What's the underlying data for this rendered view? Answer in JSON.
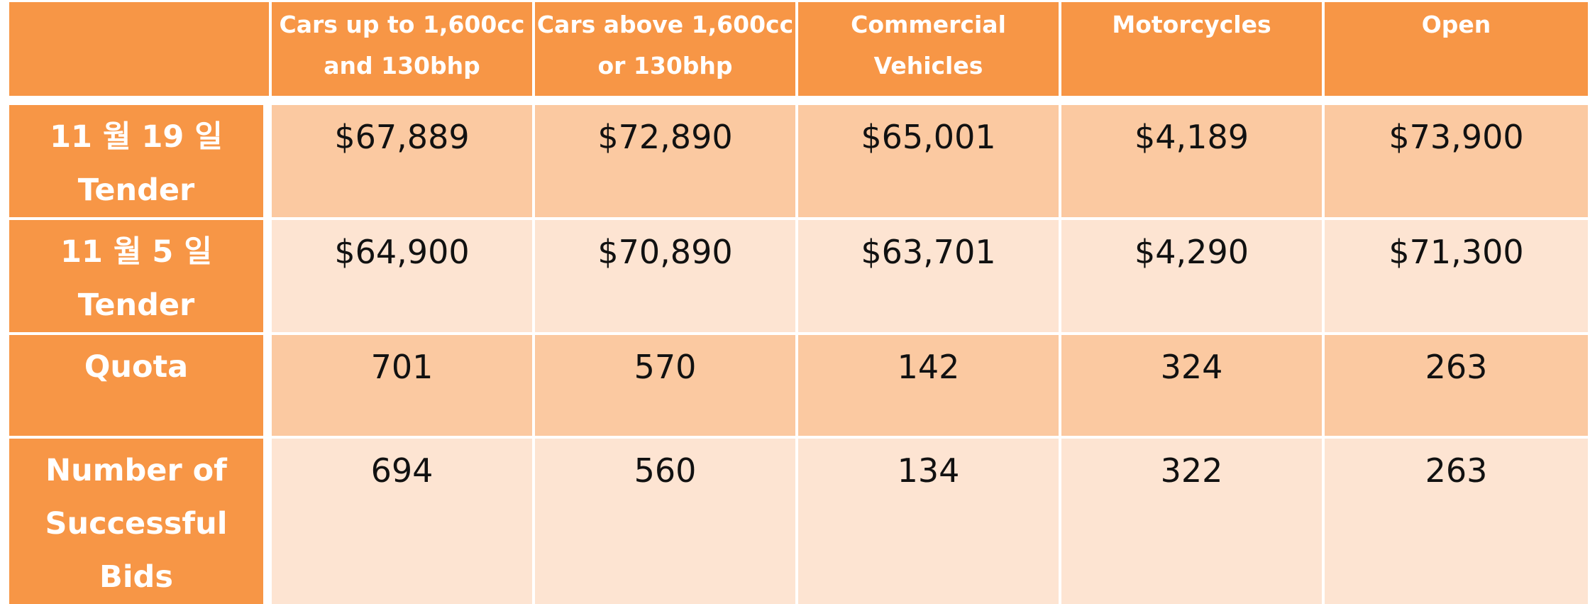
{
  "chart_data": {
    "type": "table",
    "corner_label": "",
    "columns": [
      [
        "Cars up to 1,600cc",
        "and 130bhp"
      ],
      [
        "Cars above 1,600cc",
        "or 130bhp"
      ],
      [
        "Commercial",
        "Vehicles"
      ],
      [
        "Motorcycles"
      ],
      [
        "Open"
      ]
    ],
    "rows": [
      {
        "label": [
          "11 월 19 일",
          "Tender"
        ],
        "values": [
          "$67,889",
          "$72,890",
          "$65,001",
          "$4,189",
          "$73,900"
        ]
      },
      {
        "label": [
          "11 월 5 일",
          "Tender"
        ],
        "values": [
          "$64,900",
          "$70,890",
          "$63,701",
          "$4,290",
          "$71,300"
        ]
      },
      {
        "label": [
          "Quota"
        ],
        "values": [
          "701",
          "570",
          "142",
          "324",
          "263"
        ]
      },
      {
        "label": [
          "Number of",
          "Successful Bids"
        ],
        "values": [
          "694",
          "560",
          "134",
          "322",
          "263"
        ]
      }
    ],
    "colors": {
      "header": "#F79646",
      "band_dark": "#FBC9A1",
      "band_light": "#FDE4D2",
      "header_text": "#FFFFFF",
      "cell_text": "#111111"
    }
  }
}
